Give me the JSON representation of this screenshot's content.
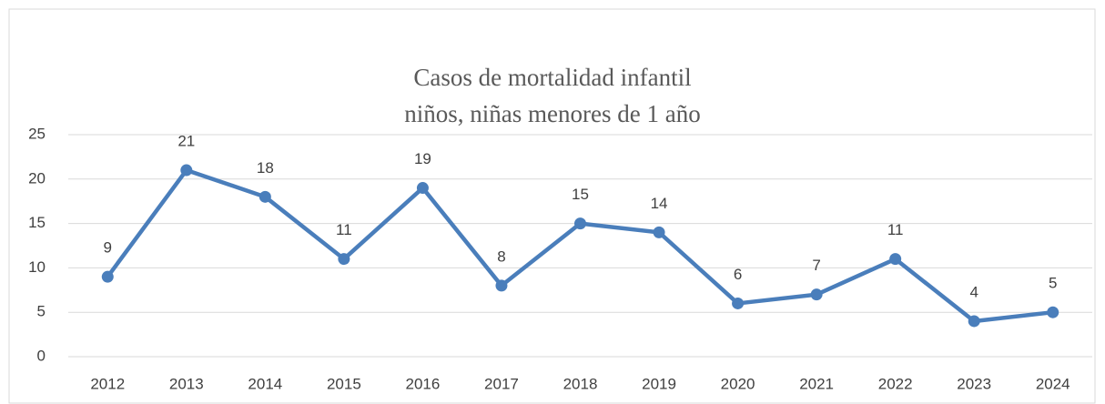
{
  "chart_data": {
    "type": "line",
    "title": "Casos de mortalidad infantil",
    "subtitle": "niños, niñas menores de 1 año",
    "categories": [
      "2012",
      "2013",
      "2014",
      "2015",
      "2016",
      "2017",
      "2018",
      "2019",
      "2020",
      "2021",
      "2022",
      "2023",
      "2024"
    ],
    "values": [
      9,
      21,
      18,
      11,
      19,
      8,
      15,
      14,
      6,
      7,
      11,
      4,
      5
    ],
    "color": "#4a7ebb",
    "ylim": [
      0,
      25
    ],
    "yticks": [
      0,
      5,
      10,
      15,
      20,
      25
    ],
    "grid": true
  }
}
